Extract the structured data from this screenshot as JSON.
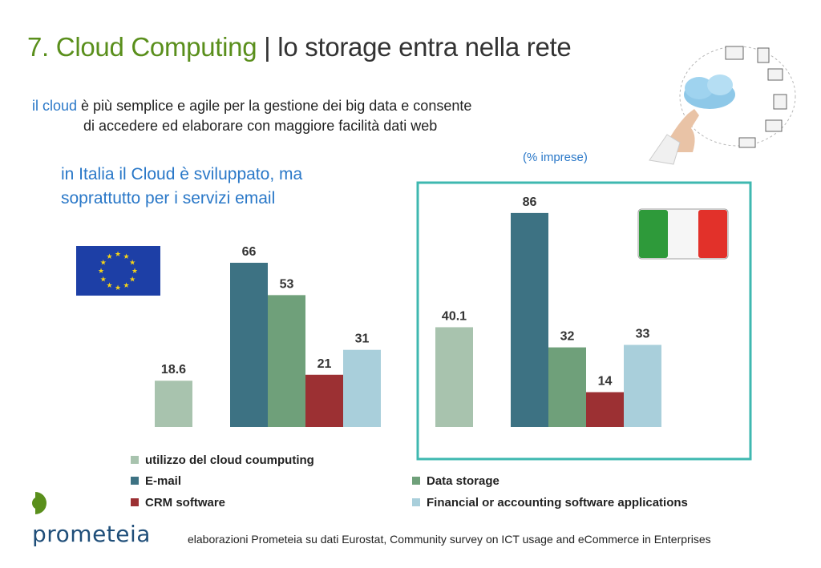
{
  "slide": {
    "title_part1": "7. Cloud Computing",
    "title_sep": " | ",
    "title_part2": "lo storage entra nella rete",
    "subtitle_highlight": "il cloud",
    "subtitle_line1_rest": " è più semplice e agile per la gestione dei big data e consente",
    "subtitle_line2": "di accedere ed elaborare con maggiore facilità dati web",
    "highlight_line1": "in Italia il Cloud è sviluppato, ma",
    "highlight_line2": "soprattutto per i servizi email",
    "unit_note": "(% imprese)",
    "footer": "elaborazioni Prometeia su dati Eurostat, Community survey on ICT usage and eCommerce in Enterprises",
    "logo_text": "prometeia"
  },
  "colors": {
    "cloud_usage": "#a8c3ae",
    "email": "#3d7283",
    "data_storage": "#6fa07a",
    "crm": "#9c3033",
    "financial": "#a9cfdb",
    "frame": "#3fb8b0",
    "title_green": "#5a8f1c",
    "blue_text": "#2a78c8"
  },
  "chart_data": [
    {
      "type": "bar",
      "region": "EU",
      "categories": [
        "utilizzo del cloud coumputing",
        "E-mail",
        "Data storage",
        "CRM software",
        "Financial or accounting software applications"
      ],
      "values": [
        18.6,
        66,
        53,
        21,
        31
      ],
      "value_labels": [
        "18.6",
        "66",
        "53",
        "21",
        "31"
      ]
    },
    {
      "type": "bar",
      "region": "Italia",
      "categories": [
        "utilizzo del cloud coumputing",
        "E-mail",
        "Data storage",
        "CRM software",
        "Financial or accounting software applications"
      ],
      "values": [
        40.1,
        86,
        32,
        14,
        33
      ],
      "value_labels": [
        "40.1",
        "86",
        "32",
        "14",
        "33"
      ]
    }
  ],
  "legend": [
    {
      "label": "utilizzo del cloud coumputing",
      "color_key": "cloud_usage"
    },
    {
      "label": "E-mail",
      "color_key": "email"
    },
    {
      "label": "Data storage",
      "color_key": "data_storage"
    },
    {
      "label": "CRM software",
      "color_key": "crm"
    },
    {
      "label": "Financial or accounting software applications",
      "color_key": "financial"
    }
  ],
  "icons": {
    "eu_flag": "eu-flag-icon",
    "it_flag": "italy-flag-icon",
    "cloud": "cloud-network-icon",
    "logo": "prometeia-logo-icon"
  }
}
